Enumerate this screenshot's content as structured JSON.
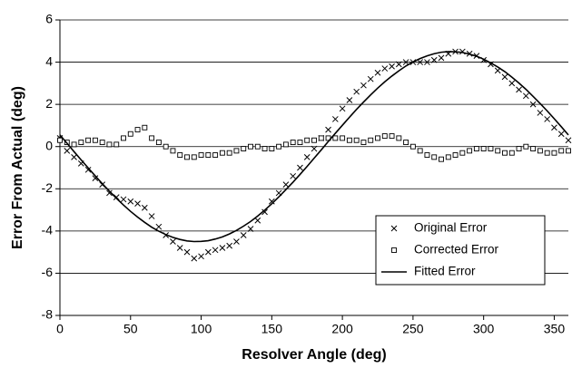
{
  "chart_data": {
    "type": "scatter",
    "xlabel": "Resolver Angle (deg)",
    "ylabel": "Error From Actual (deg)",
    "xlim": [
      0,
      360
    ],
    "xticks": [
      0,
      50,
      100,
      150,
      200,
      250,
      300,
      350
    ],
    "ylim": [
      -8,
      6
    ],
    "yticks": [
      -8,
      -6,
      -4,
      -2,
      0,
      2,
      4,
      6
    ],
    "grid": true,
    "legend": "lower right",
    "x": [
      0,
      5,
      10,
      15,
      20,
      25,
      30,
      35,
      40,
      45,
      50,
      55,
      60,
      65,
      70,
      75,
      80,
      85,
      90,
      95,
      100,
      105,
      110,
      115,
      120,
      125,
      130,
      135,
      140,
      145,
      150,
      155,
      160,
      165,
      170,
      175,
      180,
      185,
      190,
      195,
      200,
      205,
      210,
      215,
      220,
      225,
      230,
      235,
      240,
      245,
      250,
      255,
      260,
      265,
      270,
      275,
      280,
      285,
      290,
      295,
      300,
      305,
      310,
      315,
      320,
      325,
      330,
      335,
      340,
      345,
      350,
      355,
      360
    ],
    "series": [
      {
        "name": "Original Error",
        "color": "#000000",
        "style": "x",
        "values": [
          0.4,
          -0.2,
          -0.5,
          -0.8,
          -1.1,
          -1.5,
          -1.8,
          -2.2,
          -2.4,
          -2.5,
          -2.6,
          -2.7,
          -2.9,
          -3.3,
          -3.8,
          -4.2,
          -4.5,
          -4.8,
          -5.0,
          -5.3,
          -5.2,
          -5.0,
          -4.9,
          -4.8,
          -4.7,
          -4.5,
          -4.2,
          -3.9,
          -3.5,
          -3.1,
          -2.6,
          -2.2,
          -1.8,
          -1.4,
          -1.0,
          -0.5,
          -0.1,
          0.4,
          0.8,
          1.3,
          1.8,
          2.2,
          2.6,
          2.9,
          3.2,
          3.5,
          3.7,
          3.8,
          3.9,
          4.0,
          4.0,
          4.0,
          4.0,
          4.1,
          4.2,
          4.4,
          4.5,
          4.5,
          4.4,
          4.3,
          4.1,
          3.9,
          3.6,
          3.3,
          3.0,
          2.7,
          2.4,
          2.0,
          1.6,
          1.3,
          0.9,
          0.6,
          0.3
        ]
      },
      {
        "name": "Corrected Error",
        "color": "#000000",
        "style": "square",
        "values": [
          0.3,
          0.2,
          0.1,
          0.2,
          0.3,
          0.3,
          0.2,
          0.1,
          0.1,
          0.4,
          0.6,
          0.8,
          0.9,
          0.4,
          0.2,
          0.0,
          -0.2,
          -0.4,
          -0.5,
          -0.5,
          -0.4,
          -0.4,
          -0.4,
          -0.3,
          -0.3,
          -0.2,
          -0.1,
          0.0,
          0.0,
          -0.1,
          -0.1,
          0.0,
          0.1,
          0.2,
          0.2,
          0.3,
          0.3,
          0.4,
          0.4,
          0.4,
          0.4,
          0.3,
          0.3,
          0.2,
          0.3,
          0.4,
          0.5,
          0.5,
          0.4,
          0.2,
          0.0,
          -0.2,
          -0.4,
          -0.5,
          -0.6,
          -0.5,
          -0.4,
          -0.3,
          -0.2,
          -0.1,
          -0.1,
          -0.1,
          -0.2,
          -0.3,
          -0.3,
          -0.1,
          0.0,
          -0.1,
          -0.2,
          -0.3,
          -0.3,
          -0.2,
          -0.2
        ]
      },
      {
        "name": "Fitted Error",
        "color": "#000000",
        "style": "line",
        "values": [
          0.55,
          0.16,
          -0.24,
          -0.63,
          -1.01,
          -1.39,
          -1.76,
          -2.11,
          -2.45,
          -2.77,
          -3.07,
          -3.34,
          -3.59,
          -3.82,
          -4.01,
          -4.17,
          -4.3,
          -4.4,
          -4.47,
          -4.5,
          -4.49,
          -4.46,
          -4.38,
          -4.28,
          -4.14,
          -3.97,
          -3.77,
          -3.55,
          -3.29,
          -3.01,
          -2.71,
          -2.38,
          -2.04,
          -1.69,
          -1.32,
          -0.94,
          -0.55,
          -0.16,
          0.24,
          0.63,
          1.01,
          1.39,
          1.76,
          2.11,
          2.45,
          2.77,
          3.07,
          3.34,
          3.59,
          3.82,
          4.01,
          4.17,
          4.3,
          4.4,
          4.47,
          4.5,
          4.49,
          4.46,
          4.38,
          4.28,
          4.14,
          3.97,
          3.77,
          3.55,
          3.29,
          3.01,
          2.71,
          2.38,
          2.04,
          1.69,
          1.32,
          0.94,
          0.55
        ]
      }
    ]
  }
}
